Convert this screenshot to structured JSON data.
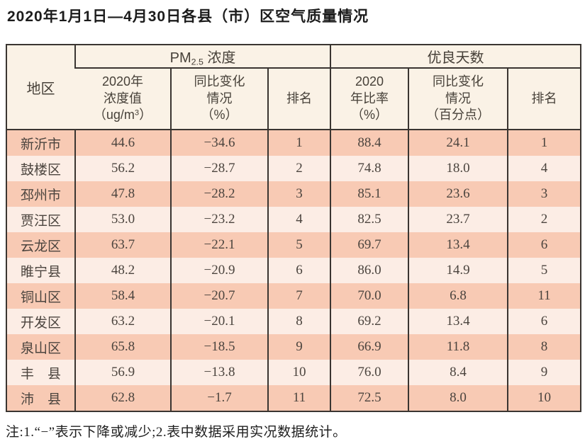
{
  "title": "2020年1月1日—4月30日各县（市）区空气质量情况",
  "colors": {
    "border": "#3a3531",
    "header_bg": "#faf2e6",
    "row_odd_bg": "#f8cab4",
    "row_even_bg": "#fcede5",
    "text": "#4b443e"
  },
  "table": {
    "region_header": "地区",
    "pm_group": {
      "prefix": "PM",
      "sub": "2.5",
      "suffix": " 浓度"
    },
    "good_days_group": "优良天数",
    "subheaders": {
      "pm_value": {
        "line1": "2020年",
        "line2": "浓度值",
        "line3_pre": "（ug/m",
        "line3_sup": "3",
        "line3_post": "）"
      },
      "pm_change": "同比变化\n情况\n（%）",
      "pm_rank": "排名",
      "good_ratio": "2020\n年比率\n（%）",
      "good_change": "同比变化\n情况\n（百分点）",
      "good_rank": "排名"
    },
    "rows": [
      {
        "region": "新沂市",
        "pm_value": "44.6",
        "pm_change": "−34.6",
        "pm_rank": "1",
        "good_ratio": "88.4",
        "good_change": "24.1",
        "good_rank": "1"
      },
      {
        "region": "鼓楼区",
        "pm_value": "56.2",
        "pm_change": "−28.7",
        "pm_rank": "2",
        "good_ratio": "74.8",
        "good_change": "18.0",
        "good_rank": "4"
      },
      {
        "region": "邳州市",
        "pm_value": "47.8",
        "pm_change": "−28.2",
        "pm_rank": "3",
        "good_ratio": "85.1",
        "good_change": "23.6",
        "good_rank": "3"
      },
      {
        "region": "贾汪区",
        "pm_value": "53.0",
        "pm_change": "−23.2",
        "pm_rank": "4",
        "good_ratio": "82.5",
        "good_change": "23.7",
        "good_rank": "2"
      },
      {
        "region": "云龙区",
        "pm_value": "63.7",
        "pm_change": "−22.1",
        "pm_rank": "5",
        "good_ratio": "69.7",
        "good_change": "13.4",
        "good_rank": "6"
      },
      {
        "region": "睢宁县",
        "pm_value": "48.2",
        "pm_change": "−20.9",
        "pm_rank": "6",
        "good_ratio": "86.0",
        "good_change": "14.9",
        "good_rank": "5"
      },
      {
        "region": "铜山区",
        "pm_value": "58.4",
        "pm_change": "−20.7",
        "pm_rank": "7",
        "good_ratio": "70.0",
        "good_change": "6.8",
        "good_rank": "11"
      },
      {
        "region": "开发区",
        "pm_value": "63.2",
        "pm_change": "−20.1",
        "pm_rank": "8",
        "good_ratio": "69.2",
        "good_change": "13.4",
        "good_rank": "6"
      },
      {
        "region": "泉山区",
        "pm_value": "65.8",
        "pm_change": "−18.5",
        "pm_rank": "9",
        "good_ratio": "66.9",
        "good_change": "11.8",
        "good_rank": "8"
      },
      {
        "region": "丰　县",
        "pm_value": "56.9",
        "pm_change": "−13.8",
        "pm_rank": "10",
        "good_ratio": "76.0",
        "good_change": "8.4",
        "good_rank": "9"
      },
      {
        "region": "沛　县",
        "pm_value": "62.8",
        "pm_change": "−1.7",
        "pm_rank": "11",
        "good_ratio": "72.5",
        "good_change": "8.0",
        "good_rank": "10"
      }
    ]
  },
  "footnote": "注:1.“−”表示下降或减少;2.表中数据采用实况数据统计。"
}
